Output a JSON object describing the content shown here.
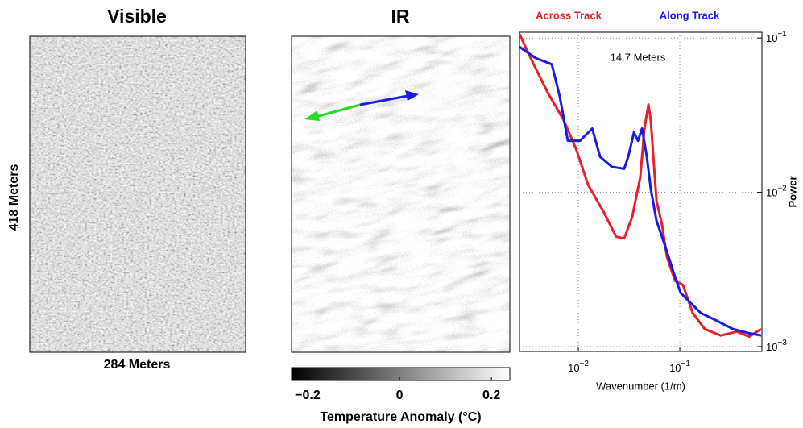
{
  "visible": {
    "title": "Visible",
    "y_label": "418 Meters",
    "x_label": "284 Meters"
  },
  "ir": {
    "title": "IR"
  },
  "chart_data": [
    {
      "type": "colorbar",
      "x_label": "Temperature Anomaly (°C)",
      "xlim": [
        -0.235,
        0.24
      ],
      "xticks": [
        {
          "value": -0.2,
          "label": "−0.2"
        },
        0,
        0.2
      ],
      "colors": [
        "#000000",
        "#ffffff"
      ]
    },
    {
      "type": "line",
      "x_label": "Wavenumber (1/m)",
      "y_label": "Power",
      "annotation": "14.7 Meters",
      "log_x": true,
      "log_y": true,
      "grid": true,
      "legend": "top",
      "xlim": [
        0.00263,
        0.645
      ],
      "ylim": [
        0.00093,
        0.109
      ],
      "xticks": [
        {
          "value": 0.01,
          "label": "10",
          "exponent": "−2"
        },
        {
          "value": 0.1,
          "label": "10",
          "exponent": "−1"
        }
      ],
      "yticks": [
        {
          "value": 0.001,
          "label": "10",
          "exponent": "−3"
        },
        {
          "value": 0.01,
          "label": "10",
          "exponent": "−2"
        },
        {
          "value": 0.1,
          "label": "10",
          "exponent": "−1"
        }
      ],
      "series": [
        {
          "name": "Across Track",
          "color": "#e8202a",
          "x": [
            0.00263,
            0.00347,
            0.00499,
            0.0072,
            0.00947,
            0.01245,
            0.0179,
            0.0236,
            0.0283,
            0.034,
            0.0408,
            0.0448,
            0.0491,
            0.0518,
            0.0589,
            0.0669,
            0.0746,
            0.0895,
            0.1076,
            0.134,
            0.176,
            0.254,
            0.366,
            0.482,
            0.634
          ],
          "values": [
            0.106,
            0.0716,
            0.0444,
            0.0292,
            0.0192,
            0.0112,
            0.00738,
            0.00515,
            0.00503,
            0.00695,
            0.0126,
            0.0259,
            0.0371,
            0.0292,
            0.00881,
            0.00616,
            0.00382,
            0.00267,
            0.00251,
            0.00165,
            0.0013,
            0.00118,
            0.00125,
            0.00116,
            0.0013
          ]
        },
        {
          "name": "Along Track",
          "color": "#1a1ae6",
          "x": [
            0.00263,
            0.00379,
            0.00547,
            0.00656,
            0.00788,
            0.0104,
            0.0137,
            0.0164,
            0.0215,
            0.0283,
            0.031,
            0.0353,
            0.0387,
            0.0424,
            0.0473,
            0.0518,
            0.0589,
            0.0669,
            0.0775,
            0.0895,
            0.1019,
            0.122,
            0.161,
            0.232,
            0.334,
            0.482,
            0.634
          ],
          "values": [
            0.0877,
            0.0742,
            0.0675,
            0.0418,
            0.0216,
            0.0216,
            0.0259,
            0.017,
            0.0146,
            0.0142,
            0.017,
            0.0244,
            0.0216,
            0.0259,
            0.017,
            0.0105,
            0.00654,
            0.00515,
            0.00382,
            0.00283,
            0.00223,
            0.00198,
            0.00165,
            0.00147,
            0.0013,
            0.00122,
            0.00118
          ]
        }
      ]
    }
  ]
}
